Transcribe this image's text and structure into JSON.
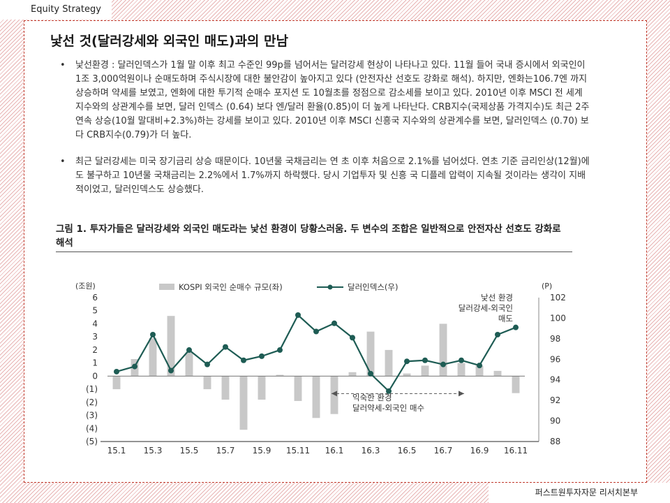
{
  "header": {
    "label": "Equity Strategy"
  },
  "footer": {
    "label": "퍼스트원투자자문 리서치본부"
  },
  "section": {
    "title": "낯선 것(달러강세와 외국인 매도)과의 만남"
  },
  "bullets": [
    {
      "marker": "•",
      "text": "낯선환경 : 달러인덱스가 1월 말 이후 최고 수준인 99p를 넘어서는 달러강세 현상이 나타나고 있다. 11월 들어 국내 증시에서 외국인이 1조 3,000억원이나 순매도하며 주식시장에 대한 불안감이 높아지고 있다 (안전자산 선호도 강화로 해석). 하지만, 엔화는106.7엔 까지 상승하며 약세를 보였고, 엔화에 대한 투기적 순매수 포지션 도 10월초를 정점으로 감소세를 보이고 있다. 2010년 이후 MSCI 전 세계 지수와의 상관계수를 보면, 달러 인덱스 (0.64) 보다 엔/달러 환율(0.85)이 더 높게 나타난다.  CRB지수(국제상품 가격지수)도 최근 2주 연속 상승(10월 말대비+2.3%)하는 강세를 보이고 있다. 2010년 이후 MSCI 신흥국 지수와의 상관계수를 보면, 달러인덱스 (0.70) 보다 CRB지수(0.79)가 더 높다."
    },
    {
      "marker": "•",
      "text": "최근 달러강세는 미국 장기금리 상승 때문이다. 10년물 국채금리는 연 초 이후 처음으로 2.1%를 넘어섰다. 연초 기준 금리인상(12월)에도 불구하고 10년물 국채금리는 2.2%에서 1.7%까지 하락했다. 당시 기업투자 및 신흥 국 디플레 압력이 지속될 것이라는 생각이 지배적이었고, 달러인덱스도 상승했다."
    }
  ],
  "figure": {
    "caption": "그림 1. 투자가들은 달러강세와 외국인 매도라는 낯선 환경이 당황스러움. 두 변수의 조합은 일반적으로 안전자산 선호도 강화로 해석"
  },
  "chart_data": {
    "type": "bar+line",
    "left_axis": {
      "unit_label": "(조원)",
      "ticks": [
        "6",
        "5",
        "4",
        "3",
        "2",
        "1",
        "0",
        "(1)",
        "(2)",
        "(3)",
        "(4)",
        "(5)"
      ],
      "ylim": [
        -5,
        6
      ]
    },
    "right_axis": {
      "unit_label": "(P)",
      "ticks": [
        "102",
        "100",
        "98",
        "96",
        "94",
        "92",
        "90",
        "88"
      ],
      "ylim": [
        88,
        102
      ]
    },
    "x_tick_labels": [
      "15.1",
      "15.3",
      "15.5",
      "15.7",
      "15.9",
      "15.11",
      "16.1",
      "16.3",
      "16.5",
      "16.7",
      "16.9",
      "16.11"
    ],
    "bar_series": {
      "name": "KOSPI 외국인 순매수 규모(좌)",
      "color": "#c8c8c8",
      "values": [
        -1.0,
        1.3,
        2.9,
        4.6,
        1.8,
        -1.0,
        -1.8,
        -4.1,
        -1.8,
        0.1,
        -1.9,
        -3.2,
        -2.9,
        0.3,
        3.4,
        2.0,
        0.2,
        0.8,
        4.0,
        1.0,
        0.8,
        0.4,
        -1.3
      ]
    },
    "line_series": {
      "name": "달러인덱스(우)",
      "color": "#1e5c54",
      "values": [
        94.8,
        95.3,
        98.4,
        94.9,
        96.9,
        95.5,
        97.2,
        95.9,
        96.3,
        96.9,
        100.3,
        98.7,
        99.5,
        98.1,
        94.6,
        92.9,
        95.8,
        95.9,
        95.5,
        95.9,
        95.4,
        98.4,
        99.1
      ]
    },
    "annotations": [
      {
        "text": "낯선 환경\n달러강세-외국인\n매도"
      },
      {
        "text": "익숙한 환경\n달러약세-외국인 매수"
      }
    ]
  }
}
